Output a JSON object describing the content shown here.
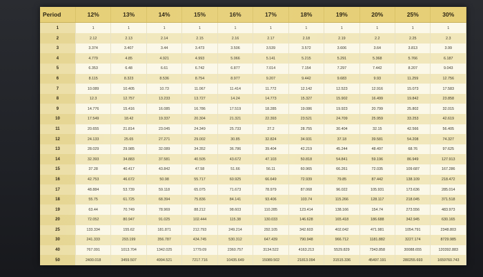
{
  "table": {
    "columns": [
      "Period",
      "12%",
      "13%",
      "14%",
      "15%",
      "16%",
      "17%",
      "18%",
      "19%",
      "20%",
      "25%",
      "30%"
    ],
    "rows": [
      [
        "1",
        "1",
        "1",
        "1",
        "1",
        "1",
        "1",
        "1",
        "1",
        "1",
        "1",
        "1"
      ],
      [
        "2",
        "2.12",
        "2.13",
        "2.14",
        "2.15",
        "2.16",
        "2.17",
        "2.18",
        "2.19",
        "2.2",
        "2.25",
        "2.3"
      ],
      [
        "3",
        "3.374",
        "3.407",
        "3.44",
        "3.473",
        "3.506",
        "3.539",
        "3.572",
        "3.606",
        "3.64",
        "3.813",
        "3.99"
      ],
      [
        "4",
        "4.779",
        "4.85",
        "4.921",
        "4.993",
        "5.066",
        "5.141",
        "5.215",
        "5.291",
        "5.368",
        "5.766",
        "6.187"
      ],
      [
        "5",
        "6.353",
        "6.48",
        "6.61",
        "6.742",
        "6.877",
        "7.014",
        "7.154",
        "7.297",
        "7.442",
        "8.207",
        "9.043"
      ],
      [
        "6",
        "8.115",
        "8.323",
        "8.536",
        "8.754",
        "8.977",
        "9.207",
        "9.442",
        "9.683",
        "9.93",
        "11.259",
        "12.756"
      ],
      [
        "7",
        "10.089",
        "10.405",
        "10.73",
        "11.067",
        "11.414",
        "11.772",
        "12.142",
        "12.523",
        "12.916",
        "15.073",
        "17.583"
      ],
      [
        "8",
        "12.3",
        "12.757",
        "13.233",
        "13.727",
        "14.24",
        "14.773",
        "15.327",
        "15.902",
        "16.499",
        "19.842",
        "23.858"
      ],
      [
        "9",
        "14.776",
        "15.416",
        "16.085",
        "16.786",
        "17.519",
        "18.285",
        "19.086",
        "19.923",
        "20.799",
        "25.802",
        "32.015"
      ],
      [
        "10",
        "17.549",
        "18.42",
        "19.337",
        "20.304",
        "21.321",
        "22.393",
        "23.521",
        "24.709",
        "25.959",
        "33.253",
        "42.619"
      ],
      [
        "11",
        "20.655",
        "21.814",
        "23.045",
        "24.349",
        "25.733",
        "27.2",
        "28.755",
        "30.404",
        "32.15",
        "42.566",
        "56.405"
      ],
      [
        "12",
        "24.133",
        "25.65",
        "27.271",
        "29.002",
        "30.85",
        "32.824",
        "34.931",
        "37.18",
        "39.581",
        "54.208",
        "74.327"
      ],
      [
        "13",
        "28.029",
        "29.985",
        "32.089",
        "34.352",
        "36.786",
        "39.404",
        "42.219",
        "45.244",
        "48.497",
        "68.76",
        "97.625"
      ],
      [
        "14",
        "32.393",
        "34.883",
        "37.581",
        "40.505",
        "43.672",
        "47.103",
        "50.818",
        "54.841",
        "59.196",
        "86.949",
        "127.913"
      ],
      [
        "15",
        "37.28",
        "40.417",
        "43.842",
        "47.58",
        "51.66",
        "56.11",
        "60.965",
        "66.261",
        "72.035",
        "109.687",
        "167.286"
      ],
      [
        "16",
        "42.753",
        "46.672",
        "50.98",
        "55.717",
        "60.925",
        "66.649",
        "72.939",
        "79.85",
        "87.442",
        "138.109",
        "218.472"
      ],
      [
        "17",
        "48.884",
        "53.739",
        "59.118",
        "65.075",
        "71.673",
        "78.979",
        "87.068",
        "96.022",
        "105.931",
        "173.636",
        "285.014"
      ],
      [
        "18",
        "55.75",
        "61.725",
        "68.394",
        "75.836",
        "84.141",
        "93.406",
        "103.74",
        "115.266",
        "128.117",
        "218.045",
        "371.518"
      ],
      [
        "19",
        "63.44",
        "70.749",
        "78.969",
        "88.212",
        "98.603",
        "110.285",
        "123.414",
        "138.166",
        "154.74",
        "273.556",
        "483.973"
      ],
      [
        "20",
        "72.052",
        "80.947",
        "91.025",
        "102.444",
        "115.38",
        "130.033",
        "146.628",
        "165.418",
        "186.688",
        "342.945",
        "630.165"
      ],
      [
        "25",
        "133.334",
        "155.62",
        "181.871",
        "212.793",
        "249.214",
        "292.105",
        "342.603",
        "402.042",
        "471.981",
        "1054.791",
        "2348.803"
      ],
      [
        "30",
        "241.333",
        "293.199",
        "356.787",
        "434.745",
        "530.312",
        "647.439",
        "790.948",
        "966.712",
        "1181.882",
        "3227.174",
        "8729.985"
      ],
      [
        "40",
        "767.091",
        "1013.704",
        "1342.025",
        "1779.09",
        "2360.757",
        "3134.522",
        "4163.213",
        "5529.829",
        "7343.858",
        "30088.655",
        "120392.883"
      ],
      [
        "50",
        "2400.018",
        "3459.507",
        "4994.521",
        "7217.716",
        "10435.649",
        "15089.502",
        "21813.094",
        "31515.336",
        "45497.191",
        "280255.693",
        "1659760.743"
      ]
    ]
  }
}
